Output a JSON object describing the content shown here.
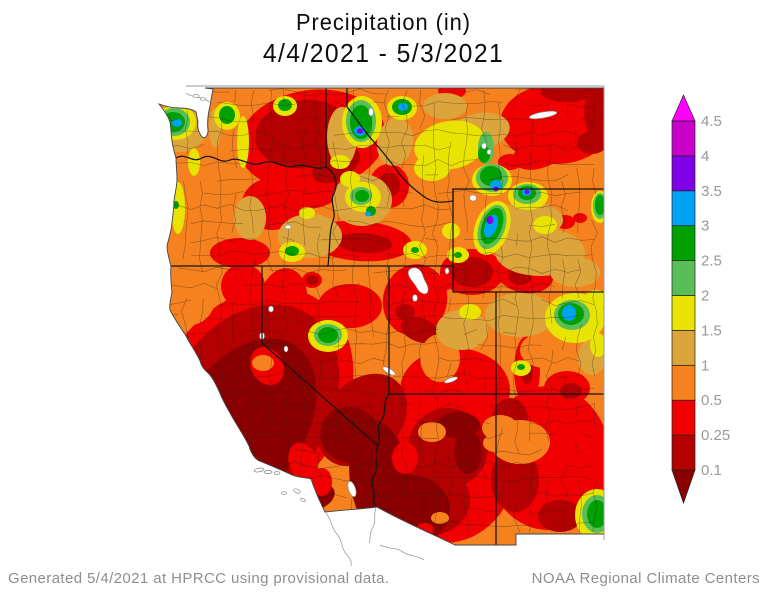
{
  "title": {
    "line1": "Precipitation (in)",
    "line2": "4/4/2021 - 5/3/2021"
  },
  "footer": {
    "left": "Generated 5/4/2021 at HPRCC using provisional data.",
    "right": "NOAA Regional Climate Centers"
  },
  "colorbar": {
    "units": "in",
    "levels": [
      "0.1",
      "0.25",
      "0.5",
      "1",
      "1.5",
      "2",
      "2.5",
      "3",
      "3.5",
      "4",
      "4.5"
    ],
    "segment_colors": [
      "#8A0000",
      "#B40000",
      "#F00000",
      "#F5821E",
      "#DCA53C",
      "#E8E300",
      "#58BE58",
      "#00A000",
      "#00A2F3",
      "#8000E8",
      "#C800C8",
      "#FF00FF"
    ],
    "label_color": "#999999"
  },
  "map": {
    "region": "Western United States",
    "content": "Contour map of accumulated precipitation with county and state boundaries",
    "palette": {
      "maroon": "#8A0000",
      "darkred": "#B40000",
      "red": "#F00000",
      "orange": "#F5821E",
      "tan": "#DCA53C",
      "yellow": "#E8E300",
      "ltgreen": "#58BE58",
      "green": "#00A000",
      "blue": "#00A2F3",
      "violet": "#8000E8",
      "magenta": "#FF00FF"
    },
    "county_line_color": "#2E2217",
    "state_line_color": "#151515",
    "coast_line_color": "#444444",
    "frame_color": "#9A9A9A",
    "water_color": "#FFFFFF"
  }
}
